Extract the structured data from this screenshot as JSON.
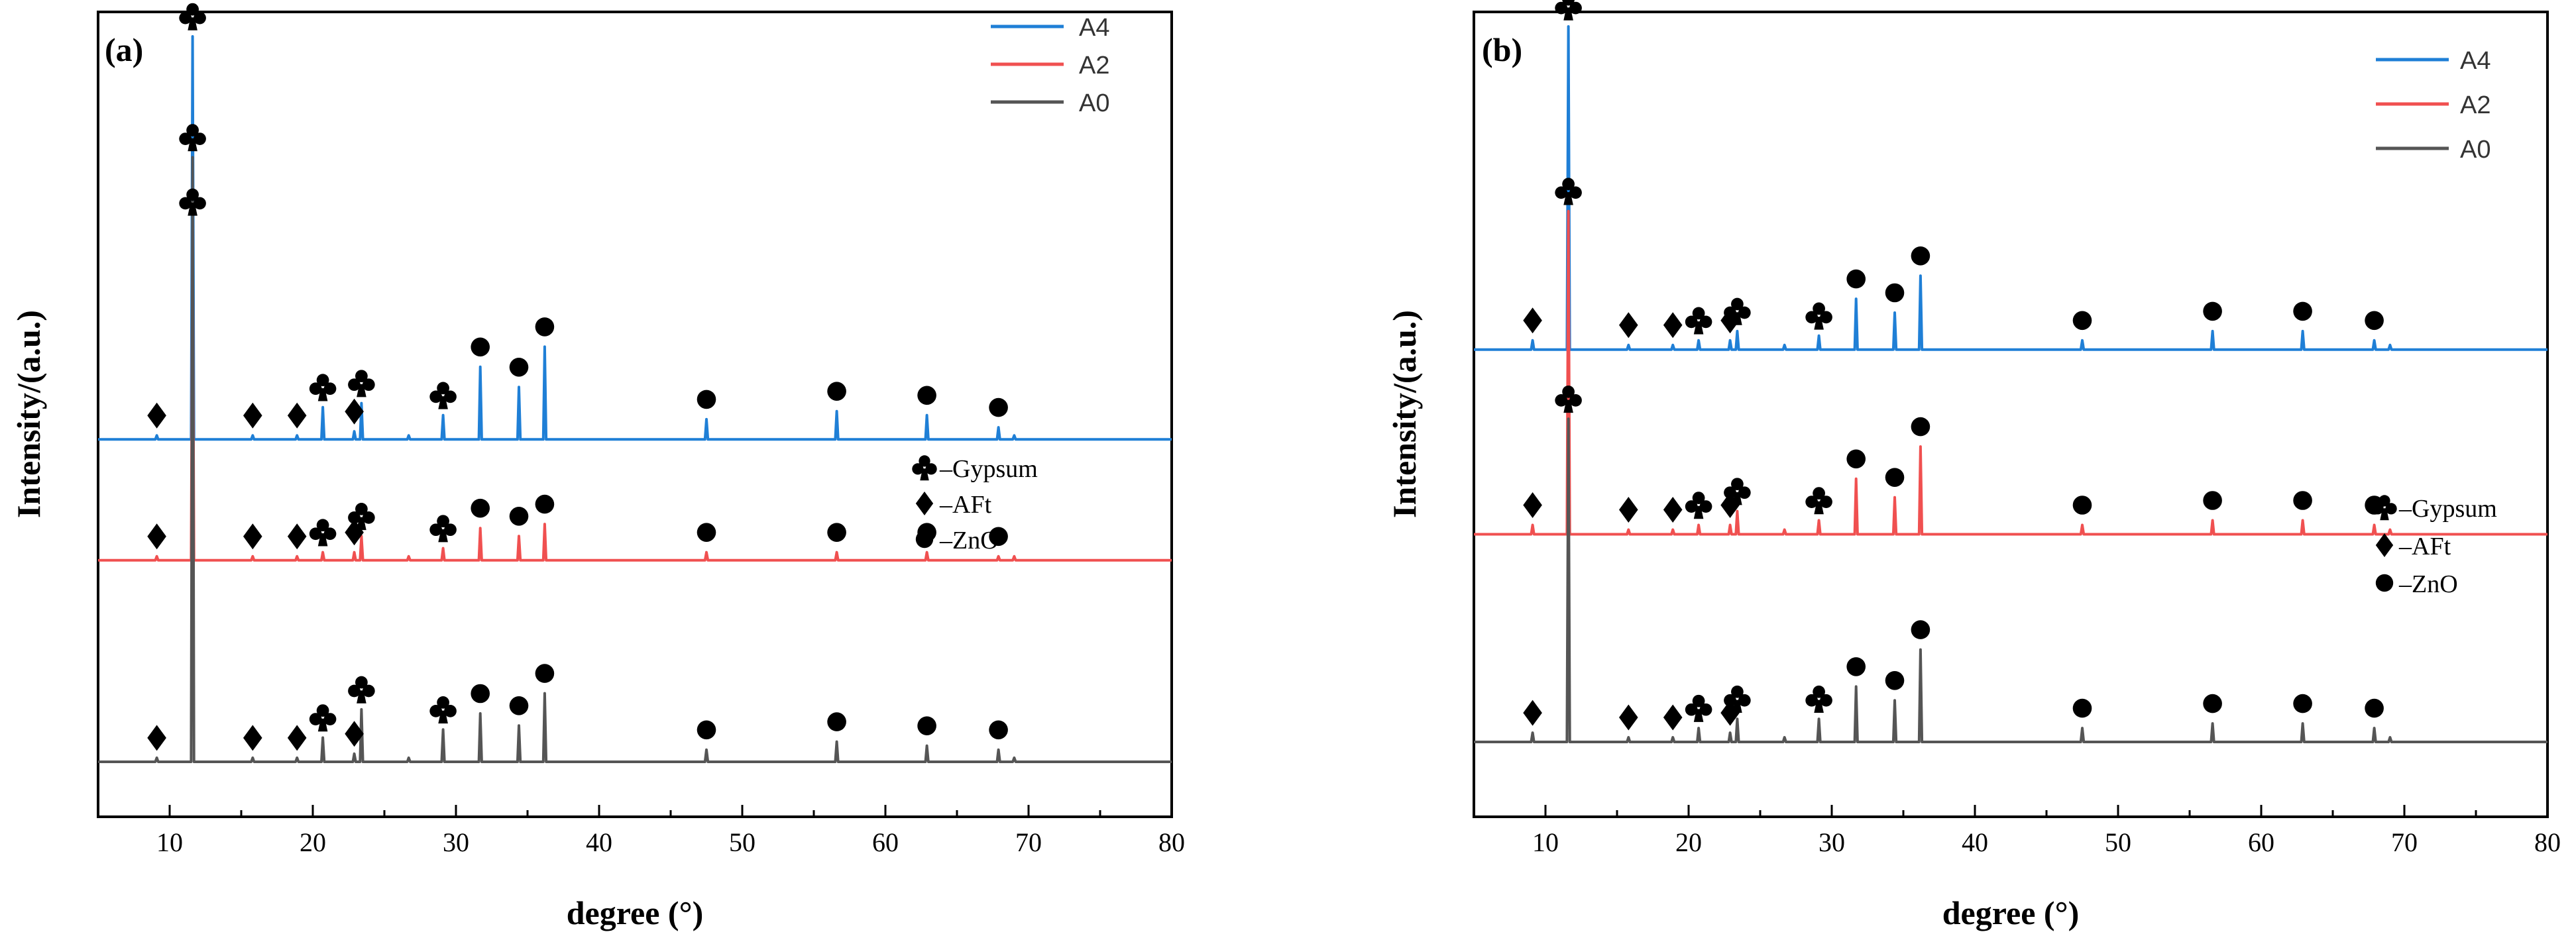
{
  "figure": {
    "x_label": "degree (°)",
    "y_label": "Intensity/(a.u.)"
  },
  "chart_data": [
    {
      "type": "line",
      "panel": "(a)",
      "xlim": [
        5,
        80
      ],
      "x_ticks": [
        "10",
        "20",
        "30",
        "40",
        "50",
        "60",
        "70",
        "80"
      ],
      "xlabel": "degree (°)",
      "ylabel": "Intensity/(a.u.)",
      "legend": [
        {
          "name": "A4",
          "color": "#1f7fd6"
        },
        {
          "name": "A2",
          "color": "#f05050"
        },
        {
          "name": "A0",
          "color": "#555555"
        }
      ],
      "phase_key": [
        {
          "symbol": "club",
          "label": "–Gypsum"
        },
        {
          "symbol": "diamond",
          "label": "–AFt"
        },
        {
          "symbol": "circle",
          "label": "–ZnO"
        }
      ],
      "series": [
        {
          "name": "A4",
          "color": "#1f7fd6",
          "baseline": 0.8,
          "peaks": [
            [
              9.1,
              0.01
            ],
            [
              11.6,
              1.0
            ],
            [
              15.8,
              0.01
            ],
            [
              18.9,
              0.01
            ],
            [
              20.7,
              0.08
            ],
            [
              22.9,
              0.02
            ],
            [
              23.4,
              0.09
            ],
            [
              26.7,
              0.01
            ],
            [
              29.1,
              0.06
            ],
            [
              31.7,
              0.18
            ],
            [
              34.4,
              0.13
            ],
            [
              36.2,
              0.23
            ],
            [
              47.5,
              0.05
            ],
            [
              56.6,
              0.07
            ],
            [
              62.9,
              0.06
            ],
            [
              67.9,
              0.03
            ],
            [
              69.0,
              0.01
            ]
          ],
          "annotations": [
            [
              9.1,
              "diamond"
            ],
            [
              11.6,
              "club"
            ],
            [
              15.8,
              "diamond"
            ],
            [
              18.9,
              "diamond"
            ],
            [
              20.7,
              "club"
            ],
            [
              22.9,
              "diamond"
            ],
            [
              23.4,
              "club"
            ],
            [
              29.1,
              "club"
            ],
            [
              31.7,
              "circle"
            ],
            [
              34.4,
              "circle"
            ],
            [
              36.2,
              "circle"
            ],
            [
              47.5,
              "circle"
            ],
            [
              56.6,
              "circle"
            ],
            [
              62.9,
              "circle"
            ],
            [
              67.9,
              "circle"
            ]
          ]
        },
        {
          "name": "A2",
          "color": "#f05050",
          "baseline": 0.5,
          "peaks": [
            [
              9.1,
              0.01
            ],
            [
              11.6,
              0.84
            ],
            [
              15.8,
              0.01
            ],
            [
              18.9,
              0.01
            ],
            [
              20.7,
              0.02
            ],
            [
              22.9,
              0.02
            ],
            [
              23.4,
              0.06
            ],
            [
              26.7,
              0.01
            ],
            [
              29.1,
              0.03
            ],
            [
              31.7,
              0.08
            ],
            [
              34.4,
              0.06
            ],
            [
              36.2,
              0.09
            ],
            [
              47.5,
              0.02
            ],
            [
              56.6,
              0.02
            ],
            [
              62.9,
              0.02
            ],
            [
              67.9,
              0.01
            ],
            [
              69.0,
              0.01
            ]
          ],
          "annotations": [
            [
              9.1,
              "diamond"
            ],
            [
              11.6,
              "club"
            ],
            [
              15.8,
              "diamond"
            ],
            [
              18.9,
              "diamond"
            ],
            [
              20.7,
              "club"
            ],
            [
              22.9,
              "diamond"
            ],
            [
              23.4,
              "club"
            ],
            [
              29.1,
              "club"
            ],
            [
              31.7,
              "circle"
            ],
            [
              34.4,
              "circle"
            ],
            [
              36.2,
              "circle"
            ],
            [
              47.5,
              "circle"
            ],
            [
              56.6,
              "circle"
            ],
            [
              62.9,
              "circle"
            ],
            [
              67.9,
              "circle"
            ]
          ]
        },
        {
          "name": "A0",
          "color": "#555555",
          "baseline": 0.0,
          "peaks": [
            [
              9.1,
              0.01
            ],
            [
              11.6,
              1.5
            ],
            [
              15.8,
              0.01
            ],
            [
              18.9,
              0.01
            ],
            [
              20.7,
              0.06
            ],
            [
              22.9,
              0.02
            ],
            [
              23.4,
              0.13
            ],
            [
              26.7,
              0.01
            ],
            [
              29.1,
              0.08
            ],
            [
              31.7,
              0.12
            ],
            [
              34.4,
              0.09
            ],
            [
              36.2,
              0.17
            ],
            [
              47.5,
              0.03
            ],
            [
              56.6,
              0.05
            ],
            [
              62.9,
              0.04
            ],
            [
              67.9,
              0.03
            ],
            [
              69.0,
              0.01
            ]
          ],
          "annotations": [
            [
              9.1,
              "diamond"
            ],
            [
              11.6,
              "club"
            ],
            [
              15.8,
              "diamond"
            ],
            [
              18.9,
              "diamond"
            ],
            [
              20.7,
              "club"
            ],
            [
              22.9,
              "diamond"
            ],
            [
              23.4,
              "club"
            ],
            [
              29.1,
              "club"
            ],
            [
              31.7,
              "circle"
            ],
            [
              34.4,
              "circle"
            ],
            [
              36.2,
              "circle"
            ],
            [
              47.5,
              "circle"
            ],
            [
              56.6,
              "circle"
            ],
            [
              62.9,
              "circle"
            ],
            [
              67.9,
              "circle"
            ]
          ]
        }
      ]
    },
    {
      "type": "line",
      "panel": "(b)",
      "xlim": [
        5,
        80
      ],
      "x_ticks": [
        "10",
        "20",
        "30",
        "40",
        "50",
        "60",
        "70",
        "80"
      ],
      "xlabel": "degree (°)",
      "ylabel": "Intensity/(a.u.)",
      "legend": [
        {
          "name": "A4",
          "color": "#1f7fd6"
        },
        {
          "name": "A2",
          "color": "#f05050"
        },
        {
          "name": "A0",
          "color": "#555555"
        }
      ],
      "phase_key": [
        {
          "symbol": "club",
          "label": "–Gypsum"
        },
        {
          "symbol": "diamond",
          "label": "–AFt"
        },
        {
          "symbol": "circle",
          "label": "–ZnO"
        }
      ],
      "series": [
        {
          "name": "A4",
          "color": "#1f7fd6",
          "baseline": 0.85,
          "peaks": [
            [
              9.1,
              0.02
            ],
            [
              11.6,
              0.7
            ],
            [
              15.8,
              0.01
            ],
            [
              18.9,
              0.01
            ],
            [
              20.7,
              0.02
            ],
            [
              22.9,
              0.02
            ],
            [
              23.4,
              0.04
            ],
            [
              26.7,
              0.01
            ],
            [
              29.1,
              0.03
            ],
            [
              31.7,
              0.11
            ],
            [
              34.4,
              0.08
            ],
            [
              36.2,
              0.16
            ],
            [
              47.5,
              0.02
            ],
            [
              56.6,
              0.04
            ],
            [
              62.9,
              0.04
            ],
            [
              67.9,
              0.02
            ],
            [
              69.0,
              0.01
            ]
          ],
          "annotations": [
            [
              9.1,
              "diamond"
            ],
            [
              11.6,
              "club"
            ],
            [
              15.8,
              "diamond"
            ],
            [
              18.9,
              "diamond"
            ],
            [
              20.7,
              "club"
            ],
            [
              22.9,
              "diamond"
            ],
            [
              23.4,
              "club"
            ],
            [
              29.1,
              "club"
            ],
            [
              31.7,
              "circle"
            ],
            [
              34.4,
              "circle"
            ],
            [
              36.2,
              "circle"
            ],
            [
              47.5,
              "circle"
            ],
            [
              56.6,
              "circle"
            ],
            [
              62.9,
              "circle"
            ],
            [
              67.9,
              "circle"
            ]
          ]
        },
        {
          "name": "A2",
          "color": "#f05050",
          "baseline": 0.45,
          "peaks": [
            [
              9.1,
              0.02
            ],
            [
              11.6,
              0.7
            ],
            [
              15.8,
              0.01
            ],
            [
              18.9,
              0.01
            ],
            [
              20.7,
              0.02
            ],
            [
              22.9,
              0.02
            ],
            [
              23.4,
              0.05
            ],
            [
              26.7,
              0.01
            ],
            [
              29.1,
              0.03
            ],
            [
              31.7,
              0.12
            ],
            [
              34.4,
              0.08
            ],
            [
              36.2,
              0.19
            ],
            [
              47.5,
              0.02
            ],
            [
              56.6,
              0.03
            ],
            [
              62.9,
              0.03
            ],
            [
              67.9,
              0.02
            ],
            [
              69.0,
              0.01
            ]
          ],
          "annotations": [
            [
              9.1,
              "diamond"
            ],
            [
              11.6,
              "club"
            ],
            [
              15.8,
              "diamond"
            ],
            [
              18.9,
              "diamond"
            ],
            [
              20.7,
              "club"
            ],
            [
              22.9,
              "diamond"
            ],
            [
              23.4,
              "club"
            ],
            [
              29.1,
              "club"
            ],
            [
              31.7,
              "circle"
            ],
            [
              34.4,
              "circle"
            ],
            [
              36.2,
              "circle"
            ],
            [
              47.5,
              "circle"
            ],
            [
              56.6,
              "circle"
            ],
            [
              62.9,
              "circle"
            ],
            [
              67.9,
              "circle"
            ]
          ]
        },
        {
          "name": "A0",
          "color": "#555555",
          "baseline": 0.0,
          "peaks": [
            [
              9.1,
              0.02
            ],
            [
              11.6,
              0.7
            ],
            [
              15.8,
              0.01
            ],
            [
              18.9,
              0.01
            ],
            [
              20.7,
              0.03
            ],
            [
              22.9,
              0.02
            ],
            [
              23.4,
              0.05
            ],
            [
              26.7,
              0.01
            ],
            [
              29.1,
              0.05
            ],
            [
              31.7,
              0.12
            ],
            [
              34.4,
              0.09
            ],
            [
              36.2,
              0.2
            ],
            [
              47.5,
              0.03
            ],
            [
              56.6,
              0.04
            ],
            [
              62.9,
              0.04
            ],
            [
              67.9,
              0.03
            ],
            [
              69.0,
              0.01
            ]
          ],
          "annotations": [
            [
              9.1,
              "diamond"
            ],
            [
              11.6,
              "club"
            ],
            [
              15.8,
              "diamond"
            ],
            [
              18.9,
              "diamond"
            ],
            [
              20.7,
              "club"
            ],
            [
              22.9,
              "diamond"
            ],
            [
              23.4,
              "club"
            ],
            [
              29.1,
              "club"
            ],
            [
              31.7,
              "circle"
            ],
            [
              34.4,
              "circle"
            ],
            [
              36.2,
              "circle"
            ],
            [
              47.5,
              "circle"
            ],
            [
              56.6,
              "circle"
            ],
            [
              62.9,
              "circle"
            ],
            [
              67.9,
              "circle"
            ]
          ]
        }
      ]
    }
  ]
}
